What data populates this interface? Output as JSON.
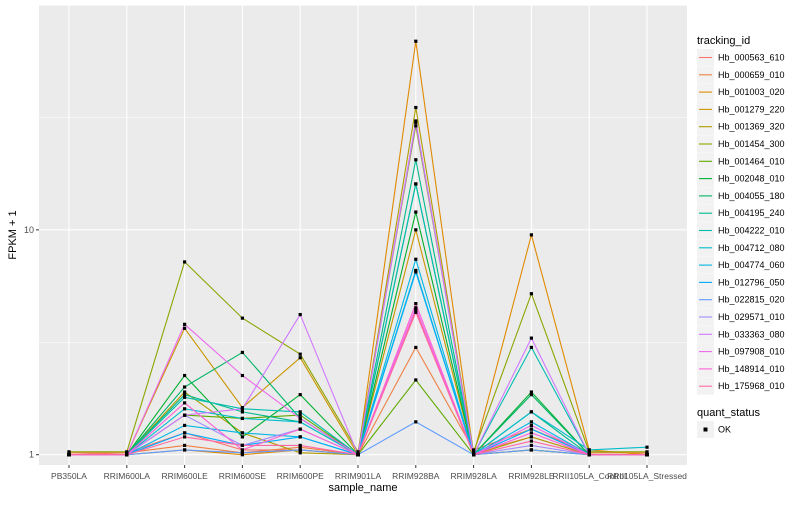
{
  "chart_data": {
    "type": "line",
    "xlabel": "sample_name",
    "ylabel": "FPKM + 1",
    "y_scale": "log10",
    "ylim": [
      0.9,
      100
    ],
    "y_ticks": [
      1,
      10
    ],
    "y_tick_labels": [
      "1",
      "10"
    ],
    "grid": true,
    "legend_position": "right",
    "categories": [
      "PB350LA",
      "RRIM600LA",
      "RRIM600LE",
      "RRIM600SE",
      "RRIM600PE",
      "RRIM901LA",
      "RRIM928BA",
      "RRIM928LA",
      "RRIM928LE",
      "RRII105LA_Control",
      "RRII105LA_Stressed"
    ],
    "legend_title": "tracking_id",
    "legend2_title": "quant_status",
    "legend2_items": [
      "OK"
    ],
    "series": [
      {
        "name": "Hb_000563_610",
        "color": "#F8766D",
        "values": [
          1.0,
          1.02,
          1.25,
          1.05,
          1.05,
          1.0,
          4.4,
          1.02,
          1.2,
          1.0,
          1.0
        ]
      },
      {
        "name": "Hb_000659_010",
        "color": "#EE8043",
        "values": [
          1.02,
          1.02,
          1.1,
          1.02,
          1.08,
          1.0,
          3.0,
          1.05,
          1.3,
          1.02,
          1.02
        ]
      },
      {
        "name": "Hb_001003_020",
        "color": "#DF8A00",
        "values": [
          1.0,
          1.0,
          1.05,
          1.0,
          1.05,
          1.0,
          69.0,
          1.0,
          9.5,
          1.05,
          1.0
        ]
      },
      {
        "name": "Hb_001279_220",
        "color": "#CA9500",
        "values": [
          1.0,
          1.0,
          3.65,
          1.62,
          2.7,
          1.0,
          10.0,
          1.0,
          1.05,
          1.0,
          1.0
        ]
      },
      {
        "name": "Hb_001369_320",
        "color": "#B09C00",
        "values": [
          1.0,
          1.0,
          1.9,
          1.25,
          1.02,
          1.0,
          35.0,
          1.0,
          1.2,
          1.0,
          1.0
        ]
      },
      {
        "name": "Hb_001454_300",
        "color": "#8EA300",
        "values": [
          1.03,
          1.03,
          7.2,
          4.05,
          2.8,
          1.03,
          29.0,
          1.03,
          5.2,
          1.03,
          1.03
        ]
      },
      {
        "name": "Hb_001464_010",
        "color": "#5FAA00",
        "values": [
          1.0,
          1.0,
          1.5,
          1.45,
          1.5,
          1.0,
          2.15,
          1.0,
          1.05,
          1.0,
          1.0
        ]
      },
      {
        "name": "Hb_002048_010",
        "color": "#00B030",
        "values": [
          1.0,
          1.0,
          2.25,
          1.2,
          1.85,
          1.0,
          12.0,
          1.0,
          1.9,
          1.0,
          1.0
        ]
      },
      {
        "name": "Hb_004055_180",
        "color": "#00B566",
        "values": [
          1.0,
          1.0,
          2.0,
          2.85,
          1.45,
          1.0,
          16.0,
          1.0,
          1.85,
          1.0,
          1.0
        ]
      },
      {
        "name": "Hb_004195_240",
        "color": "#00B98D",
        "values": [
          1.0,
          1.0,
          1.85,
          1.55,
          1.4,
          1.0,
          20.5,
          1.0,
          1.55,
          1.0,
          1.0
        ]
      },
      {
        "name": "Hb_004222_010",
        "color": "#00BDAE",
        "values": [
          1.0,
          1.0,
          1.8,
          1.6,
          1.55,
          1.0,
          16.0,
          1.0,
          3.0,
          1.0,
          1.0
        ]
      },
      {
        "name": "Hb_004712_080",
        "color": "#00BCCB",
        "values": [
          1.0,
          1.0,
          1.6,
          1.45,
          1.4,
          1.0,
          6.6,
          1.0,
          1.55,
          1.05,
          1.08
        ]
      },
      {
        "name": "Hb_004774_060",
        "color": "#00B6E5",
        "values": [
          1.0,
          1.0,
          1.35,
          1.25,
          1.2,
          1.0,
          7.4,
          1.0,
          1.4,
          1.0,
          1.0
        ]
      },
      {
        "name": "Hb_012796_050",
        "color": "#00ABFD",
        "values": [
          1.0,
          1.0,
          1.25,
          1.1,
          1.2,
          1.0,
          6.5,
          1.0,
          1.3,
          1.0,
          1.0
        ]
      },
      {
        "name": "Hb_022815_020",
        "color": "#619CFF",
        "values": [
          1.0,
          1.0,
          1.05,
          1.02,
          1.05,
          1.0,
          1.4,
          1.0,
          1.05,
          1.0,
          1.0
        ]
      },
      {
        "name": "Hb_029571_010",
        "color": "#A38CFF",
        "values": [
          1.0,
          1.0,
          1.5,
          1.1,
          1.3,
          1.0,
          30.0,
          1.0,
          1.1,
          1.0,
          1.0
        ]
      },
      {
        "name": "Hb_033363_080",
        "color": "#D177FF",
        "values": [
          1.0,
          1.0,
          1.5,
          1.6,
          4.2,
          1.0,
          30.5,
          1.0,
          3.3,
          1.0,
          1.0
        ]
      },
      {
        "name": "Hb_097908_010",
        "color": "#ED68ED",
        "values": [
          1.0,
          1.0,
          3.8,
          2.25,
          1.45,
          1.0,
          4.5,
          1.0,
          1.35,
          1.0,
          1.0
        ]
      },
      {
        "name": "Hb_148914_010",
        "color": "#FC61D5",
        "values": [
          1.0,
          1.0,
          1.7,
          1.05,
          1.3,
          1.0,
          4.7,
          1.0,
          1.25,
          1.0,
          1.0
        ]
      },
      {
        "name": "Hb_175968_010",
        "color": "#FF67A4",
        "values": [
          1.0,
          1.0,
          1.2,
          1.1,
          1.1,
          1.0,
          4.3,
          1.0,
          1.15,
          1.0,
          1.0
        ]
      }
    ]
  }
}
